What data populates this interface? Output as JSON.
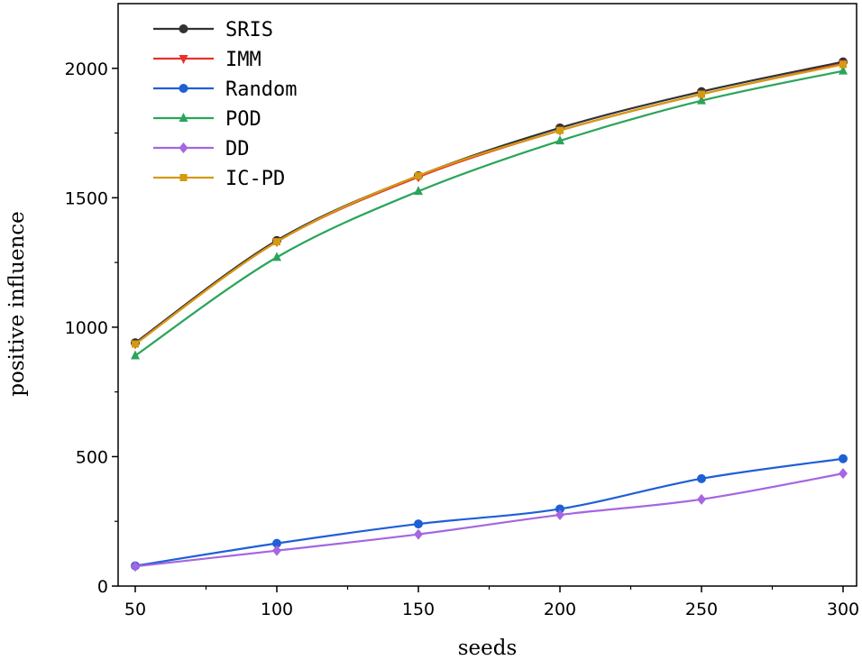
{
  "chart_data": {
    "type": "line",
    "title": "",
    "xlabel": "seeds",
    "ylabel": "positive influence",
    "x": [
      50,
      100,
      150,
      200,
      250,
      300
    ],
    "xlim": [
      50,
      300
    ],
    "ylim": [
      0,
      2250
    ],
    "xticks": [
      50,
      100,
      150,
      200,
      250,
      300
    ],
    "xtick_labels": [
      "50",
      "100",
      "150",
      "200",
      "250",
      "300"
    ],
    "yticks": [
      0,
      500,
      1000,
      1500,
      2000
    ],
    "ytick_labels": [
      "0",
      "500",
      "1000",
      "1500",
      "2000"
    ],
    "grid": false,
    "legend_position": "top-left",
    "series": [
      {
        "name": "SRIS",
        "color": "#333333",
        "marker": "circle",
        "values": [
          940,
          1335,
          1585,
          1770,
          1910,
          2025
        ]
      },
      {
        "name": "IMM",
        "color": "#e8312a",
        "marker": "triangle-down",
        "values": [
          935,
          1330,
          1580,
          1760,
          1900,
          2018
        ]
      },
      {
        "name": "Random",
        "color": "#1f5fd6",
        "marker": "circle",
        "values": [
          78,
          165,
          240,
          298,
          415,
          492
        ]
      },
      {
        "name": "POD",
        "color": "#2aa55a",
        "marker": "triangle-up",
        "values": [
          890,
          1270,
          1525,
          1720,
          1875,
          1990
        ]
      },
      {
        "name": "DD",
        "color": "#a566e0",
        "marker": "diamond",
        "values": [
          76,
          137,
          200,
          275,
          335,
          435
        ]
      },
      {
        "name": "IC-PD",
        "color": "#d39a12",
        "marker": "square",
        "values": [
          935,
          1330,
          1585,
          1760,
          1900,
          2015
        ]
      }
    ]
  }
}
